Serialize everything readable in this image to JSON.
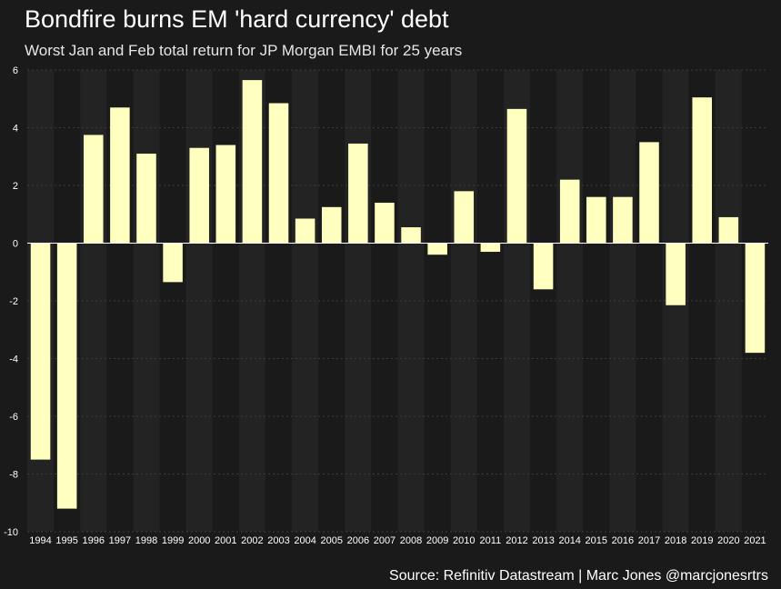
{
  "title": "Bondfire burns EM 'hard currency' debt",
  "subtitle": "Worst Jan and Feb total return for JP Morgan EMBI for 25 years",
  "source": "Source: Refinitiv Datastream | Marc Jones @marcjonesrtrs",
  "colors": {
    "background": "#1a1a1a",
    "bar": "#ffffc0",
    "band_light": "#232323",
    "band_dark": "#1a1a1a",
    "zero_line": "#ffffff",
    "grid": "#3c3c3c",
    "text": "#ffffff"
  },
  "chart_data": {
    "type": "bar",
    "title": "Bondfire burns EM 'hard currency' debt",
    "subtitle": "Worst Jan and Feb total return for JP Morgan EMBI for 25 years",
    "xlabel": "",
    "ylabel": "",
    "ylim": [
      -10,
      6
    ],
    "yticks": [
      6,
      4,
      2,
      0,
      -2,
      -4,
      -6,
      -8,
      -10
    ],
    "grid": "horizontal dotted",
    "legend": "none",
    "categories": [
      "1994",
      "1995",
      "1996",
      "1997",
      "1998",
      "1999",
      "2000",
      "2001",
      "2002",
      "2003",
      "2004",
      "2005",
      "2006",
      "2007",
      "2008",
      "2009",
      "2010",
      "2011",
      "2012",
      "2013",
      "2014",
      "2015",
      "2016",
      "2017",
      "2018",
      "2019",
      "2020",
      "2021"
    ],
    "values": [
      -7.5,
      -9.2,
      3.75,
      4.7,
      3.1,
      -1.35,
      3.3,
      3.4,
      5.65,
      4.85,
      0.85,
      1.25,
      3.45,
      1.4,
      0.55,
      -0.4,
      1.8,
      -0.3,
      4.65,
      -1.6,
      2.2,
      1.6,
      1.6,
      3.5,
      -2.15,
      5.05,
      0.9,
      -3.8
    ]
  }
}
